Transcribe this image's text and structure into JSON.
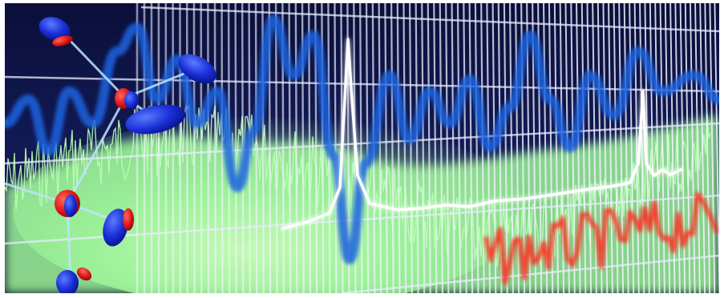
{
  "palette": {
    "background": "#0b0f3a",
    "grid": "#f2f4ff",
    "green_glow": "#9ef59a",
    "blue_trace": "#1f63e0",
    "white_trace": "#ffffff",
    "red_trace": "#ff2a1e",
    "atom_blue": "#1a2fd8",
    "atom_red": "#e01818",
    "bond": "#bfe3ff"
  },
  "icons": [
    "molecule-icon"
  ]
}
